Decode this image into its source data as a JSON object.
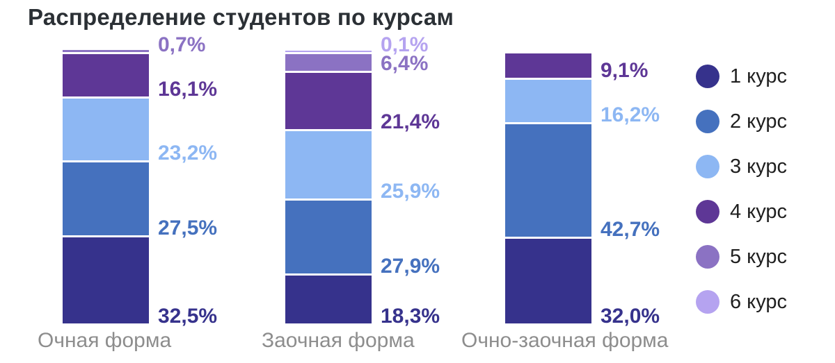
{
  "title": "Распределение студентов по курсам",
  "chart_data": {
    "type": "bar",
    "variant": "stacked-column-100",
    "unit": "percent",
    "grid": false,
    "legend_position": "right",
    "value_label_format": "comma-decimal-percent",
    "categories": [
      "Очная форма",
      "Заочная форма",
      "Очно-заочная форма"
    ],
    "series": [
      {
        "name": "1 курс",
        "color": "#36328C",
        "values": [
          32.5,
          18.3,
          32.0
        ],
        "labels": [
          "32,5%",
          "18,3%",
          "32,0%"
        ]
      },
      {
        "name": "2 курс",
        "color": "#4571BE",
        "values": [
          27.5,
          27.9,
          42.7
        ],
        "labels": [
          "27,5%",
          "27,9%",
          "42,7%"
        ]
      },
      {
        "name": "3 курс",
        "color": "#8DB7F3",
        "values": [
          23.2,
          25.9,
          16.2
        ],
        "labels": [
          "23,2%",
          "25,9%",
          "16,2%"
        ]
      },
      {
        "name": "4 курс",
        "color": "#5E3796",
        "values": [
          16.1,
          21.4,
          9.1
        ],
        "labels": [
          "16,1%",
          "21,4%",
          "9,1%"
        ]
      },
      {
        "name": "5 курс",
        "color": "#8B72C3",
        "values": [
          0.7,
          6.4,
          null
        ],
        "labels": [
          "0,7%",
          "6,4%",
          null
        ]
      },
      {
        "name": "6 курс",
        "color": "#B5A3F0",
        "values": [
          null,
          0.1,
          null
        ],
        "labels": [
          null,
          "0,1%",
          null
        ]
      }
    ]
  },
  "text_colors": {
    "title": "#2B3035",
    "category_label": "#8D8D8D",
    "legend_label": "#1F1F1F"
  }
}
